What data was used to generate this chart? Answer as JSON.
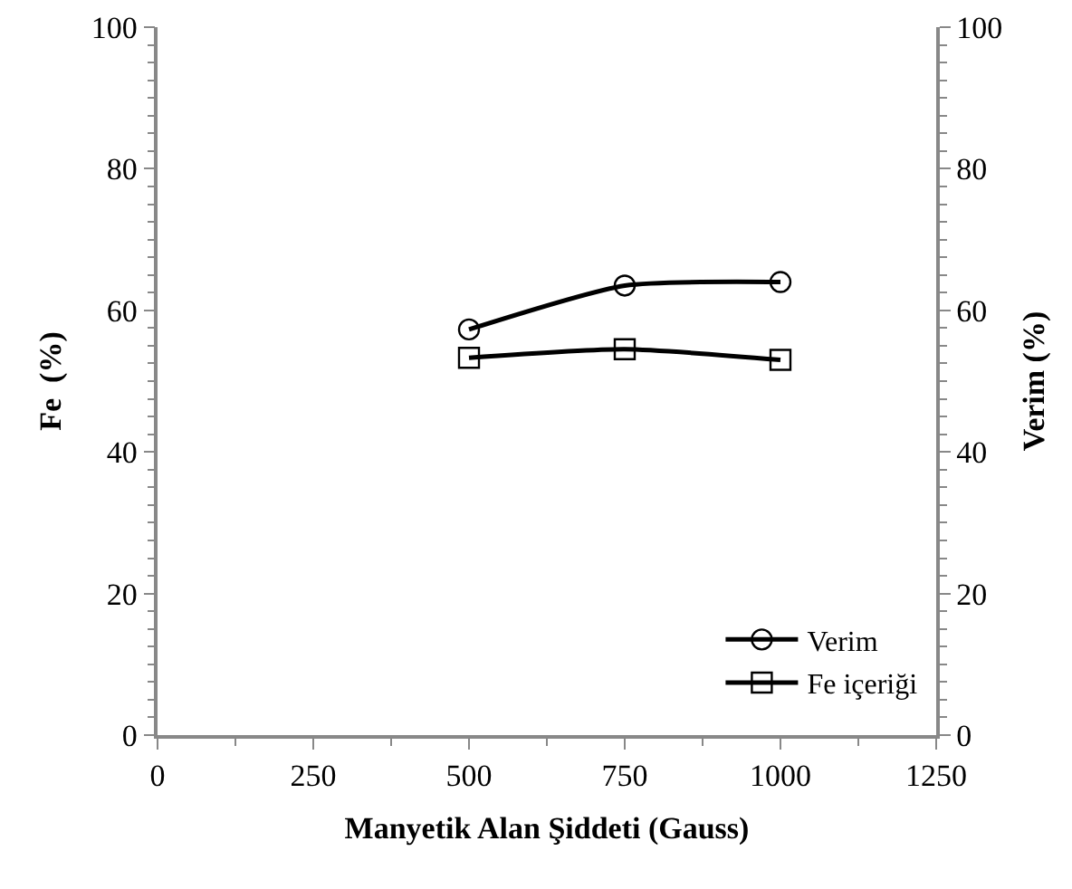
{
  "chart_data": {
    "type": "line",
    "xlabel": "Manyetik Alan Şiddeti (Gauss)",
    "ylabel": "Fe  (%)",
    "y2label": "Verim (%)",
    "x": [
      500,
      750,
      1000
    ],
    "series": [
      {
        "name": "Verim",
        "color": "#000000",
        "values": [
          57.3,
          63.5,
          64
        ],
        "axis": "y2",
        "marker": "circle"
      },
      {
        "name": "Fe içeriği",
        "color": "#000000",
        "values": [
          53.3,
          54.5,
          53
        ],
        "marker": "square"
      }
    ],
    "xlim": [
      0,
      1250
    ],
    "xticks": [
      0,
      250,
      500,
      750,
      1000,
      1250
    ],
    "ylim": [
      0,
      100
    ],
    "yticks": [
      0,
      20,
      40,
      60,
      80,
      100
    ],
    "y2lim": [
      0,
      100
    ],
    "y2ticks": [
      0,
      20,
      40,
      60,
      80,
      100
    ],
    "grid": false,
    "legend": "bottom right",
    "line_style": "solid"
  }
}
